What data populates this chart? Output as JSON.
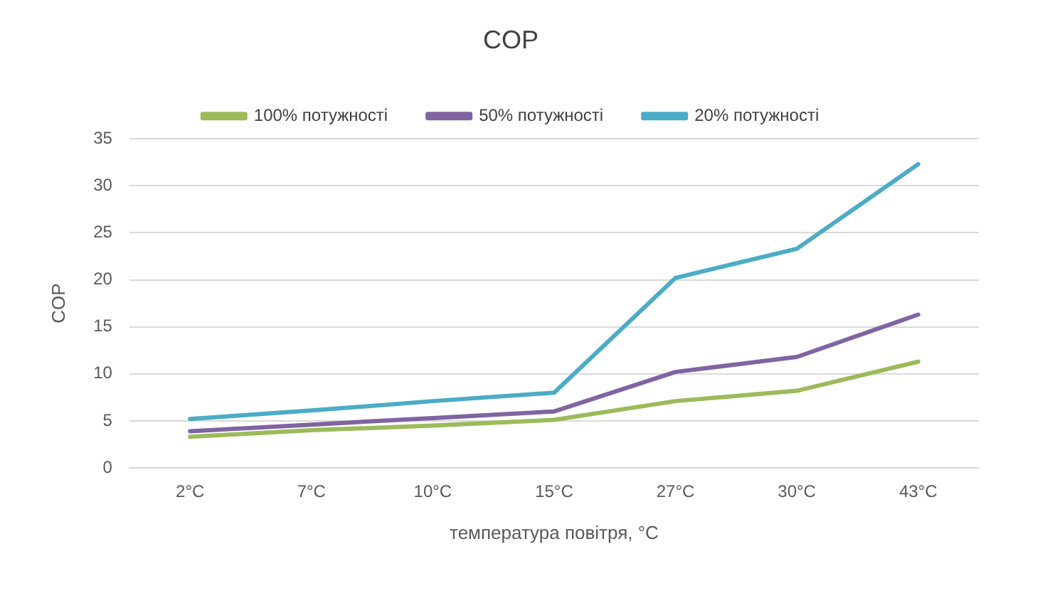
{
  "chart_data": {
    "type": "line",
    "title": "COP",
    "xlabel": "температура повітря, °C",
    "ylabel": "COP",
    "categories": [
      "2°C",
      "7°C",
      "10°C",
      "15°C",
      "27°C",
      "30°C",
      "43°C"
    ],
    "series": [
      {
        "name": "100% потужності",
        "color": "#9bbb59",
        "values": [
          3.3,
          4.0,
          4.5,
          5.1,
          7.1,
          8.2,
          11.3
        ]
      },
      {
        "name": "50% потужності",
        "color": "#8064a2",
        "values": [
          3.9,
          4.6,
          5.3,
          6.0,
          10.2,
          11.8,
          16.3
        ]
      },
      {
        "name": "20% потужності",
        "color": "#4bacc6",
        "values": [
          5.2,
          6.1,
          7.1,
          8.0,
          20.2,
          23.3,
          32.3
        ]
      }
    ],
    "ylim": [
      0,
      35
    ],
    "yticks": [
      0,
      5,
      10,
      15,
      20,
      25,
      30,
      35
    ],
    "grid": "y",
    "legend": "top",
    "marker": "none",
    "line_style": "solid"
  }
}
